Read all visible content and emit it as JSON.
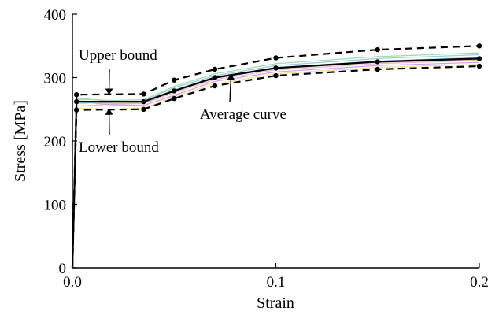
{
  "chart_data": {
    "type": "line",
    "xlabel": "Strain",
    "ylabel": "Stress [MPa]",
    "xlim": [
      0,
      0.2
    ],
    "ylim": [
      0,
      400
    ],
    "x_ticks": [
      {
        "value": 0.0,
        "label": "0.0"
      },
      {
        "value": 0.1,
        "label": "0.1"
      },
      {
        "value": 0.2,
        "label": "0.2"
      }
    ],
    "y_ticks": [
      {
        "value": 0,
        "label": "0"
      },
      {
        "value": 100,
        "label": "100"
      },
      {
        "value": 200,
        "label": "200"
      },
      {
        "value": 300,
        "label": "300"
      },
      {
        "value": 400,
        "label": "400"
      }
    ],
    "series": [
      {
        "name": "Upper bound",
        "style": "dashed",
        "color": "#000000",
        "x": [
          0,
          0.002,
          0.035,
          0.05,
          0.07,
          0.1,
          0.15,
          0.2
        ],
        "y": [
          0,
          273,
          274,
          296,
          313,
          331,
          344,
          350
        ]
      },
      {
        "name": "Average curve",
        "style": "solid",
        "color": "#000000",
        "x": [
          0,
          0.002,
          0.035,
          0.05,
          0.07,
          0.1,
          0.15,
          0.2
        ],
        "y": [
          0,
          262,
          262,
          279,
          300,
          315,
          325,
          330
        ]
      },
      {
        "name": "Lower bound",
        "style": "dashed",
        "color": "#000000",
        "x": [
          0,
          0.002,
          0.035,
          0.05,
          0.07,
          0.1,
          0.15,
          0.2
        ],
        "y": [
          0,
          249,
          250,
          267,
          287,
          303,
          313,
          318
        ]
      }
    ],
    "specimen_curves": [
      {
        "color": "#9ec9e8",
        "x": [
          0,
          0.002,
          0.02,
          0.035,
          0.05,
          0.07,
          0.1,
          0.15,
          0.2
        ],
        "y": [
          0,
          268,
          262,
          263,
          284,
          303,
          319,
          330,
          336
        ]
      },
      {
        "color": "#f2b6d4",
        "x": [
          0,
          0.002,
          0.02,
          0.035,
          0.05,
          0.07,
          0.1,
          0.15,
          0.2
        ],
        "y": [
          0,
          255,
          258,
          259,
          276,
          297,
          312,
          322,
          327
        ]
      },
      {
        "color": "#c9a3e3",
        "x": [
          0,
          0.002,
          0.02,
          0.035,
          0.05,
          0.07,
          0.1,
          0.15,
          0.2
        ],
        "y": [
          0,
          262,
          257,
          256,
          272,
          294,
          309,
          319,
          324
        ]
      },
      {
        "color": "#9fd8a8",
        "x": [
          0,
          0.002,
          0.02,
          0.035,
          0.05,
          0.07,
          0.1,
          0.15,
          0.2
        ],
        "y": [
          0,
          266,
          264,
          265,
          286,
          306,
          322,
          333,
          339
        ]
      },
      {
        "color": "#f2dd9a",
        "x": [
          0,
          0.002,
          0.02,
          0.035,
          0.05,
          0.07,
          0.1,
          0.15,
          0.2
        ],
        "y": [
          0,
          252,
          250,
          252,
          270,
          290,
          306,
          316,
          321
        ]
      },
      {
        "color": "#a8e0e0",
        "x": [
          0,
          0.002,
          0.02,
          0.035,
          0.05,
          0.07,
          0.1,
          0.15,
          0.2
        ],
        "y": [
          0,
          259,
          261,
          262,
          281,
          301,
          316,
          326,
          332
        ]
      },
      {
        "color": "#d9b99b",
        "x": [
          0,
          0.002,
          0.02,
          0.035,
          0.05,
          0.07,
          0.1,
          0.15,
          0.2
        ],
        "y": [
          0,
          264,
          259,
          260,
          278,
          299,
          314,
          324,
          328
        ]
      }
    ],
    "annotations": [
      {
        "text": "Upper bound",
        "arrow_to": [
          0.018,
          274
        ]
      },
      {
        "text": "Lower bound",
        "arrow_to": [
          0.018,
          250
        ]
      },
      {
        "text": "Average curve",
        "arrow_to": [
          0.078,
          305
        ]
      }
    ],
    "grid": false,
    "legend": "none"
  }
}
